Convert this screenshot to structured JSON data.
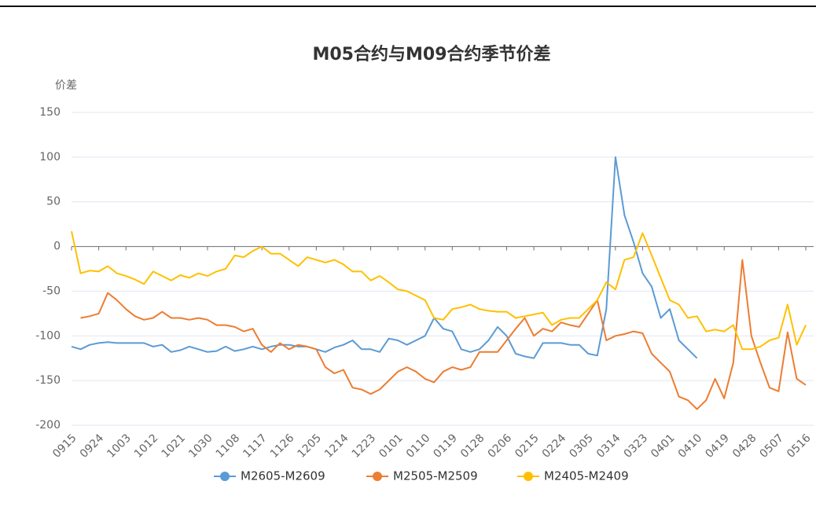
{
  "chart_data": {
    "type": "line",
    "title": "M05合约与M09合约季节价差",
    "y_label": "价差",
    "categories": [
      "0915",
      null,
      null,
      "0924",
      null,
      null,
      "1003",
      null,
      null,
      "1012",
      null,
      null,
      "1021",
      null,
      null,
      "1030",
      null,
      null,
      "1108",
      null,
      null,
      "1117",
      null,
      null,
      "1126",
      null,
      null,
      "1205",
      null,
      null,
      "1214",
      null,
      null,
      "1223",
      null,
      null,
      "0101",
      null,
      null,
      "0110",
      null,
      null,
      "0119",
      null,
      null,
      "0128",
      null,
      null,
      "0206",
      null,
      null,
      "0215",
      null,
      null,
      "0224",
      null,
      null,
      "0305",
      null,
      null,
      "0314",
      null,
      null,
      "0323",
      null,
      null,
      "0401",
      null,
      null,
      "0410",
      null,
      null,
      "0419",
      null,
      null,
      "0428",
      null,
      null,
      "0507",
      null,
      null,
      "0516"
    ],
    "ylim": [
      -200,
      150
    ],
    "yticks": [
      -200,
      -150,
      -100,
      -50,
      0,
      50,
      100,
      150
    ],
    "grid": true,
    "legend": "bottom",
    "series": [
      {
        "name": "M2605-M2609",
        "color": "#5b9bd5",
        "values": [
          -112,
          -115,
          -110,
          -108,
          -107,
          -108,
          -108,
          -108,
          -108,
          -112,
          -110,
          -118,
          -116,
          -112,
          -115,
          -118,
          -117,
          -112,
          -117,
          -115,
          -112,
          -115,
          -112,
          -110,
          -110,
          -112,
          -112,
          -115,
          -118,
          -113,
          -110,
          -105,
          -115,
          -115,
          -118,
          -103,
          -105,
          -110,
          -105,
          -100,
          -80,
          -92,
          -95,
          -115,
          -118,
          -115,
          -105,
          -90,
          -100,
          -120,
          -123,
          -125,
          -108,
          -108,
          -108,
          -110,
          -110,
          -120,
          -122,
          -70,
          100,
          35,
          5,
          -30,
          -45,
          -80,
          -70,
          -105,
          -115,
          -125,
          null,
          null,
          null,
          null,
          null,
          null,
          null,
          null,
          null,
          null,
          null,
          null
        ]
      },
      {
        "name": "M2505-M2509",
        "color": "#ed7d31",
        "values": [
          null,
          -80,
          -78,
          -75,
          -52,
          -60,
          -70,
          -78,
          -82,
          -80,
          -73,
          -80,
          -80,
          -82,
          -80,
          -82,
          -88,
          -88,
          -90,
          -95,
          -92,
          -110,
          -118,
          -108,
          -115,
          -110,
          -112,
          -115,
          -135,
          -142,
          -138,
          -158,
          -160,
          -165,
          -160,
          -150,
          -140,
          -135,
          -140,
          -148,
          -152,
          -140,
          -135,
          -138,
          -135,
          -118,
          -118,
          -118,
          -105,
          -92,
          -80,
          -100,
          -92,
          -95,
          -85,
          -88,
          -90,
          -75,
          -60,
          -105,
          -100,
          -98,
          -95,
          -97,
          -120,
          -130,
          -140,
          -168,
          -172,
          -182,
          -172,
          -148,
          -170,
          -130,
          -15,
          -100,
          -130,
          -158,
          -162,
          -96,
          -148,
          -155
        ]
      },
      {
        "name": "M2405-M2409",
        "color": "#ffc000",
        "values": [
          17,
          -30,
          -27,
          -28,
          -22,
          -30,
          -33,
          -37,
          -42,
          -28,
          -33,
          -38,
          -32,
          -35,
          -30,
          -33,
          -28,
          -25,
          -10,
          -12,
          -5,
          0,
          -8,
          -8,
          -15,
          -22,
          -12,
          -15,
          -18,
          -15,
          -20,
          -28,
          -28,
          -38,
          -33,
          -40,
          -48,
          -50,
          -55,
          -60,
          -80,
          -82,
          -70,
          -68,
          -65,
          -70,
          -72,
          -73,
          -73,
          -80,
          -78,
          -76,
          -74,
          -88,
          -82,
          -80,
          -80,
          -70,
          -60,
          -40,
          -48,
          -15,
          -12,
          15,
          -10,
          -35,
          -60,
          -65,
          -80,
          -78,
          -95,
          -93,
          -95,
          -88,
          -115,
          -115,
          -112,
          -105,
          -102,
          -65,
          -110,
          -88
        ]
      }
    ]
  }
}
